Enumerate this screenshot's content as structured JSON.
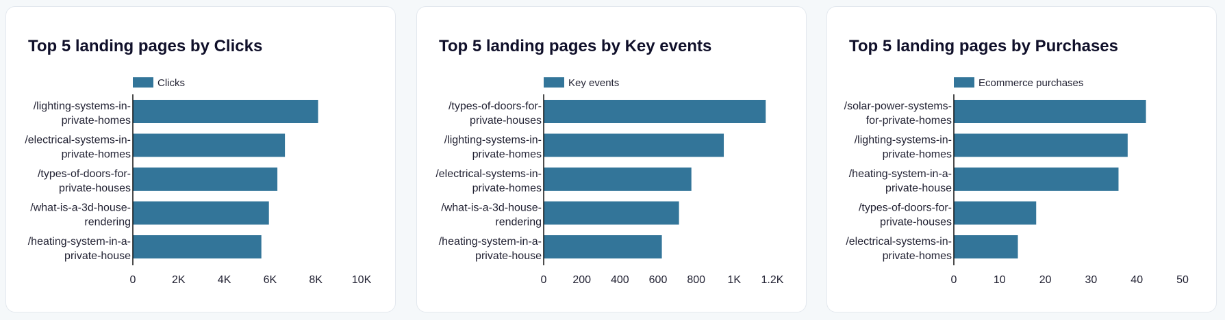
{
  "colors": {
    "bar": "#337599",
    "axis": "#111111",
    "text": "#222233"
  },
  "charts": [
    {
      "title": "Top 5 landing pages by Clicks",
      "chart_data": {
        "type": "bar",
        "orientation": "horizontal",
        "legend": "Clicks",
        "legend_position": "top",
        "categories": [
          [
            "/lighting-systems-in-",
            "private-homes"
          ],
          [
            "/electrical-systems-in-",
            "private-homes"
          ],
          [
            "/types-of-doors-for-",
            "private-houses"
          ],
          [
            "/what-is-a-3d-house-",
            "rendering"
          ],
          [
            "/heating-system-in-a-",
            "private-house"
          ]
        ],
        "values": [
          8100,
          6650,
          6320,
          5950,
          5620
        ],
        "xlim": [
          0,
          10000
        ],
        "ticks": [
          0,
          2000,
          4000,
          6000,
          8000,
          10000
        ],
        "tick_labels": [
          "0",
          "2K",
          "4K",
          "6K",
          "8K",
          "10K"
        ],
        "grid": false
      }
    },
    {
      "title": "Top 5 landing pages by Key events",
      "chart_data": {
        "type": "bar",
        "orientation": "horizontal",
        "legend": "Key events",
        "legend_position": "top",
        "categories": [
          [
            "/types-of-doors-for-",
            "private-houses"
          ],
          [
            "/lighting-systems-in-",
            "private-homes"
          ],
          [
            "/electrical-systems-in-",
            "private-homes"
          ],
          [
            "/what-is-a-3d-house-",
            "rendering"
          ],
          [
            "/heating-system-in-a-",
            "private-house"
          ]
        ],
        "values": [
          1165,
          945,
          775,
          710,
          620
        ],
        "xlim": [
          0,
          1200
        ],
        "ticks": [
          0,
          200,
          400,
          600,
          800,
          1000,
          1200
        ],
        "tick_labels": [
          "0",
          "200",
          "400",
          "600",
          "800",
          "1K",
          "1.2K"
        ],
        "grid": false
      }
    },
    {
      "title": "Top 5 landing pages by Purchases",
      "chart_data": {
        "type": "bar",
        "orientation": "horizontal",
        "legend": "Ecommerce purchases",
        "legend_position": "top",
        "categories": [
          [
            "/solar-power-systems-",
            "for-private-homes"
          ],
          [
            "/lighting-systems-in-",
            "private-homes"
          ],
          [
            "/heating-system-in-a-",
            "private-house"
          ],
          [
            "/types-of-doors-for-",
            "private-houses"
          ],
          [
            "/electrical-systems-in-",
            "private-homes"
          ]
        ],
        "values": [
          42,
          38,
          36,
          18,
          14
        ],
        "xlim": [
          0,
          50
        ],
        "ticks": [
          0,
          10,
          20,
          30,
          40,
          50
        ],
        "tick_labels": [
          "0",
          "10",
          "20",
          "30",
          "40",
          "50"
        ],
        "grid": false
      }
    }
  ]
}
